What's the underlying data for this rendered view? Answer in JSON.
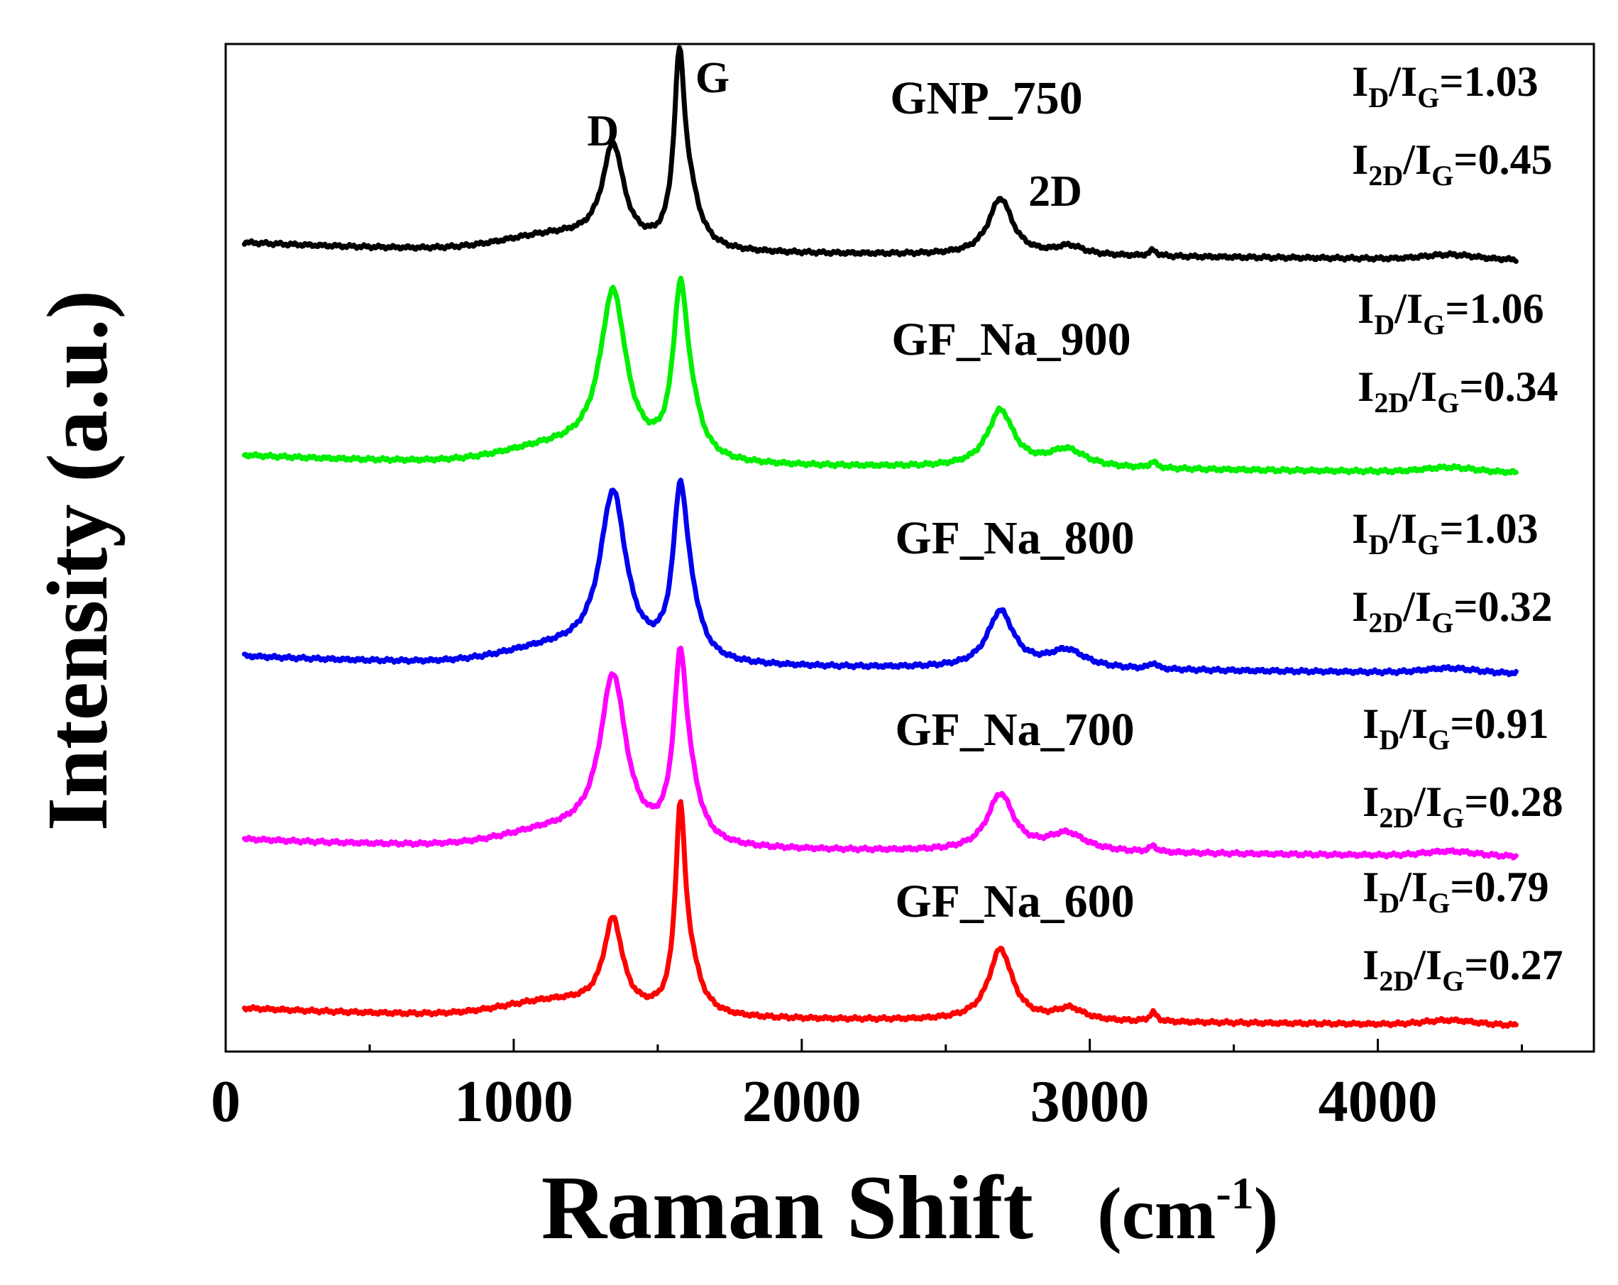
{
  "chart_data": {
    "type": "line",
    "title": "",
    "xlabel": "Raman Shift",
    "xlabel_unit": "(cm",
    "xlabel_unit_sup": "-1",
    "xlabel_unit_close": ")",
    "ylabel": "Intensity (a.u.)",
    "xlim": [
      0,
      4750
    ],
    "x_ticks": [
      0,
      1000,
      2000,
      3000,
      4000
    ],
    "x_tick_labels": [
      "0",
      "1000",
      "2000",
      "3000",
      "4000"
    ],
    "x_minor_ticks": [
      500,
      1500,
      2500,
      3500,
      4500
    ],
    "y_ticks": [],
    "x_range": [
      65,
      4480
    ],
    "peak_labels": [
      {
        "text": "D",
        "x": 1310
      },
      {
        "text": "G",
        "x": 1690
      },
      {
        "text": "2D",
        "x": 2880
      }
    ],
    "series": [
      {
        "name": "GNP_750",
        "color": "#000000",
        "baseline": 0.38,
        "slope_start": 0.06,
        "peaks": [
          {
            "center": 1345,
            "height": 0.33,
            "width": 45
          },
          {
            "center": 1575,
            "height": 0.58,
            "width": 22
          },
          {
            "center": 1610,
            "height": 0.15,
            "width": 45
          },
          {
            "center": 2690,
            "height": 0.19,
            "width": 50
          },
          {
            "center": 2930,
            "height": 0.03,
            "width": 60
          },
          {
            "center": 3220,
            "height": 0.02,
            "width": 15
          }
        ],
        "ratios": {
          "id_ig": "=1.03",
          "i2d_ig": "=0.45"
        }
      },
      {
        "name": "GF_Na_900",
        "color": "#00ee00",
        "baseline": 0.38,
        "slope_start": 0.06,
        "peaks": [
          {
            "center": 1345,
            "height": 0.55,
            "width": 55
          },
          {
            "center": 1578,
            "height": 0.52,
            "width": 30
          },
          {
            "center": 1615,
            "height": 0.12,
            "width": 45
          },
          {
            "center": 2690,
            "height": 0.19,
            "width": 55
          },
          {
            "center": 2920,
            "height": 0.06,
            "width": 80
          },
          {
            "center": 3220,
            "height": 0.02,
            "width": 15
          }
        ],
        "ratios": {
          "id_ig": "=1.06",
          "i2d_ig": "=0.34"
        }
      },
      {
        "name": "GF_Na_800",
        "color": "#0000ee",
        "baseline": 0.38,
        "slope_start": 0.06,
        "peaks": [
          {
            "center": 1345,
            "height": 0.55,
            "width": 55
          },
          {
            "center": 1578,
            "height": 0.52,
            "width": 30
          },
          {
            "center": 1615,
            "height": 0.12,
            "width": 45
          },
          {
            "center": 2690,
            "height": 0.19,
            "width": 55
          },
          {
            "center": 2920,
            "height": 0.06,
            "width": 80
          },
          {
            "center": 3220,
            "height": 0.02,
            "width": 15
          }
        ],
        "ratios": {
          "id_ig": "=1.03",
          "i2d_ig": "=0.32"
        }
      },
      {
        "name": "GF_Na_700",
        "color": "#ff00ff",
        "baseline": 0.38,
        "slope_start": 0.06,
        "peaks": [
          {
            "center": 1345,
            "height": 0.55,
            "width": 55
          },
          {
            "center": 1578,
            "height": 0.57,
            "width": 28
          },
          {
            "center": 1615,
            "height": 0.12,
            "width": 45
          },
          {
            "center": 2690,
            "height": 0.19,
            "width": 55
          },
          {
            "center": 2920,
            "height": 0.06,
            "width": 80
          },
          {
            "center": 3220,
            "height": 0.02,
            "width": 15
          }
        ],
        "ratios": {
          "id_ig": "=0.91",
          "i2d_ig": "=0.28"
        }
      },
      {
        "name": "GF_Na_600",
        "color": "#ff0000",
        "baseline": 0.38,
        "slope_start": 0.06,
        "peaks": [
          {
            "center": 1345,
            "height": 0.3,
            "width": 40
          },
          {
            "center": 1578,
            "height": 0.62,
            "width": 20
          },
          {
            "center": 1610,
            "height": 0.15,
            "width": 45
          },
          {
            "center": 2690,
            "height": 0.24,
            "width": 50
          },
          {
            "center": 2930,
            "height": 0.04,
            "width": 60
          },
          {
            "center": 3220,
            "height": 0.03,
            "width": 15
          }
        ],
        "ratios": {
          "id_ig": "=0.79",
          "i2d_ig": "=0.27"
        }
      }
    ]
  }
}
